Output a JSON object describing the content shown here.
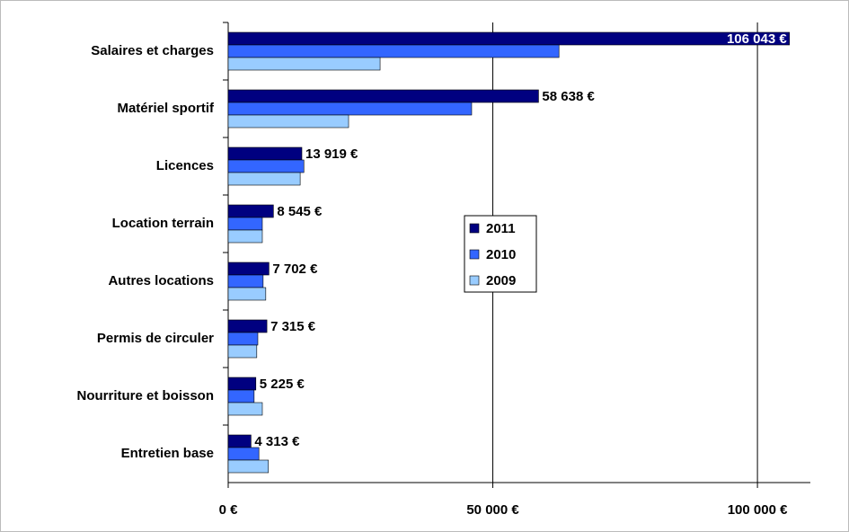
{
  "chart_data": {
    "type": "bar",
    "orientation": "horizontal",
    "categories": [
      "Salaires et charges",
      "Matériel sportif",
      "Licences",
      "Location terrain",
      "Autres locations",
      "Permis de circuler",
      "Nourriture et boisson",
      "Entretien base"
    ],
    "series": [
      {
        "name": "2011",
        "color": "#000080",
        "values": [
          106043,
          58638,
          13919,
          8545,
          7702,
          7315,
          5225,
          4313
        ],
        "value_labels": [
          "106 043 €",
          "58 638 €",
          "13 919 €",
          "8 545 €",
          "7 702 €",
          "7 315 €",
          "5 225 €",
          "4 313 €"
        ]
      },
      {
        "name": "2010",
        "color": "#3366FF",
        "values": [
          62500,
          46000,
          14300,
          6450,
          6600,
          5600,
          4900,
          5800
        ]
      },
      {
        "name": "2009",
        "color": "#99CCFF",
        "values": [
          28700,
          22750,
          13600,
          6450,
          7100,
          5400,
          6450,
          7600
        ]
      }
    ],
    "xlim": [
      0,
      110000
    ],
    "xticks": [
      {
        "value": 0,
        "label": "0 €"
      },
      {
        "value": 50000,
        "label": "50 000 €"
      },
      {
        "value": 100000,
        "label": "100 000 €"
      }
    ],
    "grid": true,
    "legend": "center"
  }
}
